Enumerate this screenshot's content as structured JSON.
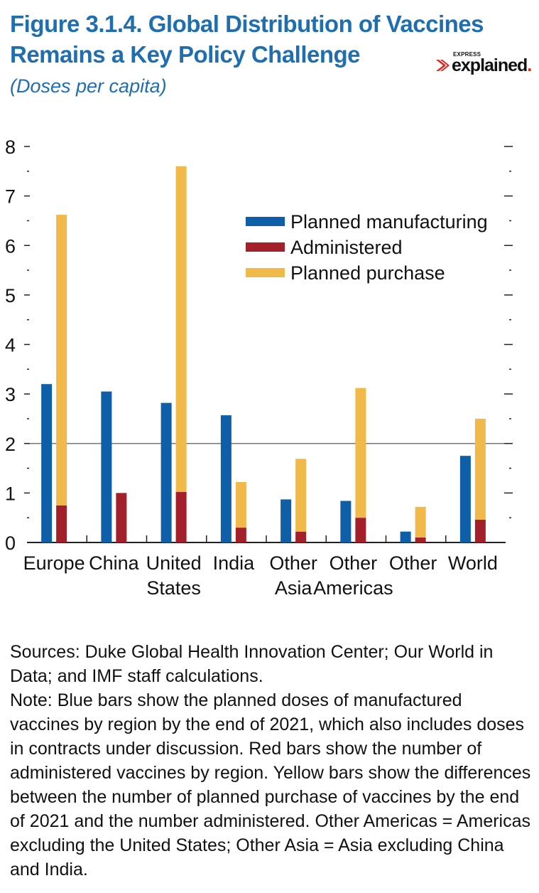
{
  "header": {
    "title_line1": "Figure 3.1.4.  Global Distribution of Vaccines",
    "title_line2": "Remains a Key Policy Challenge",
    "subtitle": "(Doses per capita)",
    "logo_small": "EXPRESS",
    "logo_text": "explained",
    "logo_dot": "."
  },
  "chart_data": {
    "type": "bar",
    "categories": [
      "Europe",
      "China",
      "United States",
      "India",
      "Other Asia",
      "Other Americas",
      "Other",
      "World"
    ],
    "category_lines": [
      [
        "Europe"
      ],
      [
        "China"
      ],
      [
        "United",
        "States"
      ],
      [
        "India"
      ],
      [
        "Other",
        "Asia"
      ],
      [
        "Other",
        "Americas"
      ],
      [
        "Other"
      ],
      [
        "World"
      ]
    ],
    "series": [
      {
        "name": "Planned manufacturing",
        "color": "#0f5ea8",
        "values": [
          3.2,
          3.05,
          2.82,
          2.57,
          0.87,
          0.84,
          0.22,
          1.75
        ]
      },
      {
        "name": "Administered",
        "color": "#a3202a",
        "values": [
          0.75,
          1.0,
          1.02,
          0.3,
          0.22,
          0.5,
          0.1,
          0.46
        ]
      },
      {
        "name": "Planned purchase",
        "color": "#f0b94a",
        "values": [
          5.87,
          0,
          6.58,
          0.92,
          1.47,
          2.62,
          0.62,
          2.04
        ],
        "stacked_on": "Administered"
      }
    ],
    "ylim": [
      0,
      8
    ],
    "yticks": [
      0,
      1,
      2,
      3,
      4,
      5,
      6,
      7,
      8
    ],
    "reference_line": 2,
    "legend_position": "top-right",
    "grid": false
  },
  "notes": {
    "sources": "Sources: Duke Global Health Innovation Center; Our World in Data; and IMF staff calculations.",
    "note": "Note: Blue bars show the planned doses of manufactured vaccines by region by the end of 2021, which also includes doses in contracts under discussion. Red bars show the number of administered vaccines by region. Yellow bars show the differences between the number of planned purchase of vaccines by the end of 2021 and the number administered. Other Americas = Americas excluding the United States; Other Asia = Asia excluding China and India."
  }
}
